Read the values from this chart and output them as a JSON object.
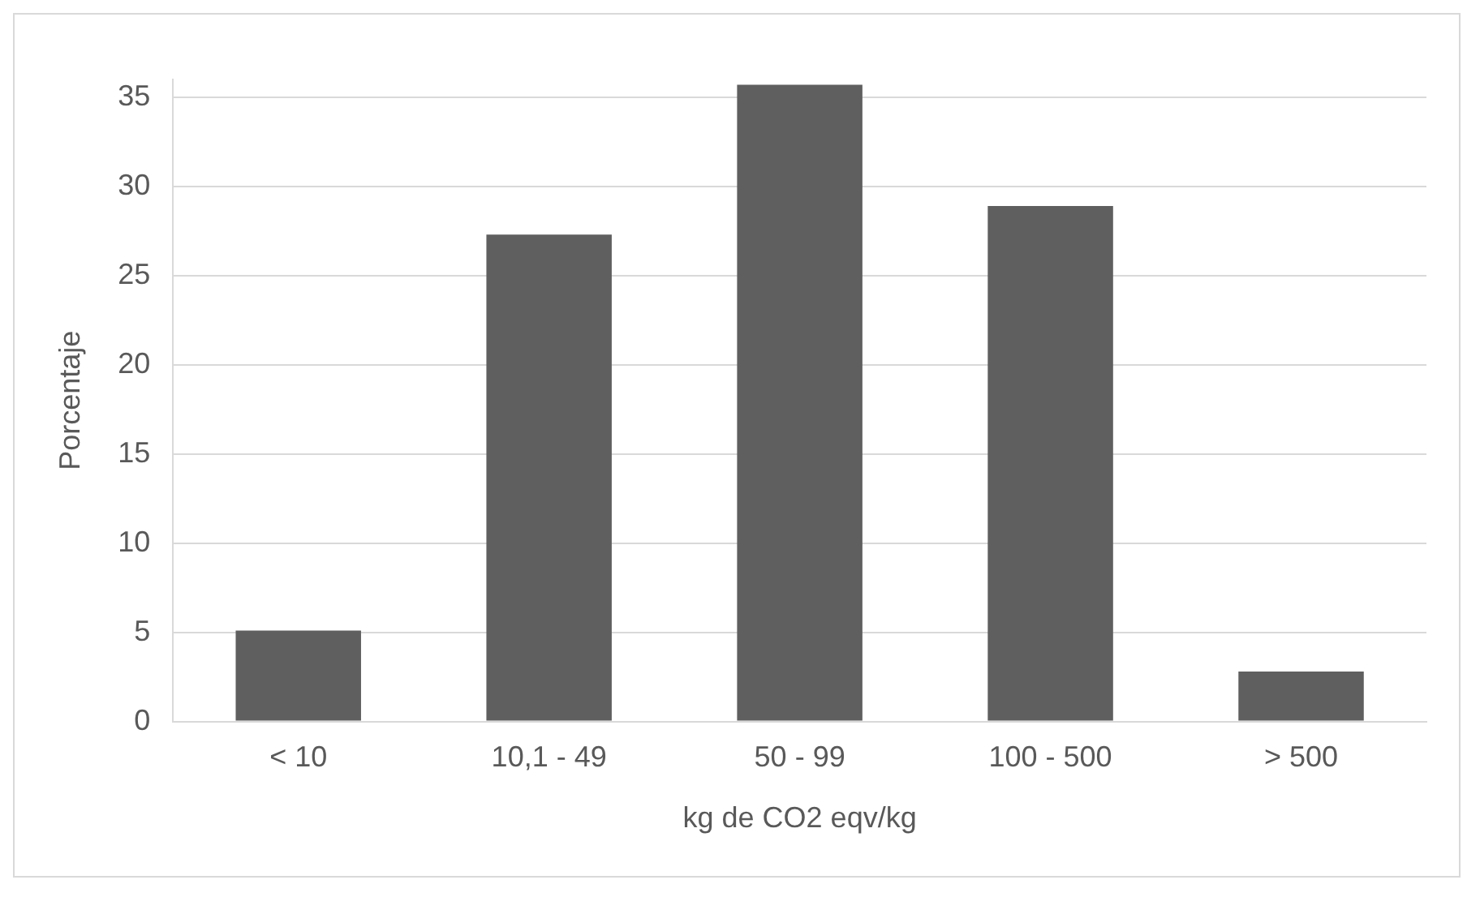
{
  "chart_data": {
    "type": "bar",
    "xlabel": "kg de CO2 eqv/kg",
    "ylabel": "Porcentaje",
    "categories": [
      "< 10",
      "10,1 - 49",
      "50 - 99",
      "100 - 500",
      "> 500"
    ],
    "values": [
      5.1,
      27.3,
      35.7,
      28.9,
      2.8
    ],
    "color": "#5f5f5f",
    "ylim": [
      0,
      36
    ],
    "yticks": [
      0,
      5,
      10,
      15,
      20,
      25,
      30,
      35
    ],
    "grid": "y",
    "legend": false
  }
}
